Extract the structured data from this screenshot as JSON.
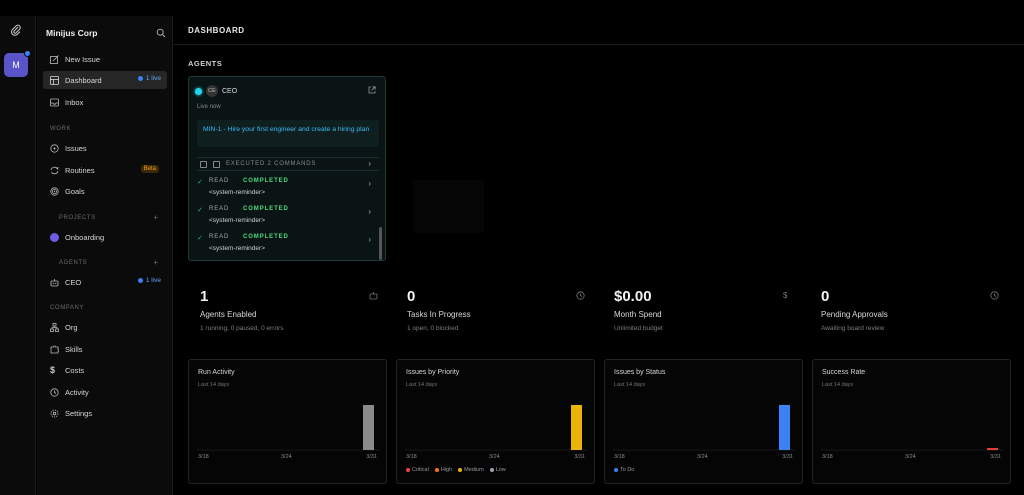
{
  "workspace": {
    "initial": "M"
  },
  "sidebar": {
    "company_name": "Minijus Corp",
    "top_items": [
      {
        "label": "New Issue"
      },
      {
        "label": "Dashboard",
        "badge": "1 live"
      },
      {
        "label": "Inbox"
      }
    ],
    "work_label": "WORK",
    "work_items": [
      {
        "label": "Issues"
      },
      {
        "label": "Routines",
        "badge": "Beta"
      },
      {
        "label": "Goals"
      }
    ],
    "projects_label": "PROJECTS",
    "projects": [
      {
        "label": "Onboarding",
        "color": "#6d5ce8"
      }
    ],
    "agents_label": "AGENTS",
    "agents": [
      {
        "label": "CEO",
        "badge": "1 live"
      }
    ],
    "company_label": "COMPANY",
    "company_items": [
      {
        "label": "Org"
      },
      {
        "label": "Skills"
      },
      {
        "label": "Costs"
      },
      {
        "label": "Activity"
      },
      {
        "label": "Settings"
      }
    ]
  },
  "header": {
    "title": "DASHBOARD"
  },
  "agents_section": {
    "label": "AGENTS",
    "card": {
      "avatar": "CE",
      "name": "CEO",
      "status": "Live now",
      "task": "MIN-1 - Hire your first engineer and create a hiring plan",
      "commands": "EXECUTED 2 COMMANDS",
      "steps": [
        {
          "type": "READ",
          "status": "COMPLETED",
          "detail": "<system-reminder>"
        },
        {
          "type": "READ",
          "status": "COMPLETED",
          "detail": "<system-reminder>"
        },
        {
          "type": "READ",
          "status": "COMPLETED",
          "detail": "<system-reminder>"
        }
      ]
    }
  },
  "stats": [
    {
      "value": "1",
      "label": "Agents Enabled",
      "sub": "1 running, 0 paused, 0 errors",
      "icon": "bot-icon"
    },
    {
      "value": "0",
      "label": "Tasks In Progress",
      "sub": "1 open, 0 blocked",
      "icon": "clock-icon"
    },
    {
      "value": "$0.00",
      "label": "Month Spend",
      "sub": "Unlimited budget",
      "icon": "dollar-icon"
    },
    {
      "value": "0",
      "label": "Pending Approvals",
      "sub": "Awaiting board review",
      "icon": "clock-icon"
    }
  ],
  "charts": [
    {
      "title": "Run Activity",
      "subtitle": "Last 14 days",
      "x_labels": [
        "3/18",
        "3/24",
        "3/31"
      ],
      "color": "#8a8a8a",
      "bar_fraction": 0.72,
      "legend": []
    },
    {
      "title": "Issues by Priority",
      "subtitle": "Last 14 days",
      "x_labels": [
        "3/18",
        "3/24",
        "3/31"
      ],
      "color": "#eab308",
      "bar_fraction": 0.72,
      "legend": [
        {
          "label": "Critical",
          "color": "#ef4444"
        },
        {
          "label": "High",
          "color": "#f97316"
        },
        {
          "label": "Medium",
          "color": "#eab308"
        },
        {
          "label": "Low",
          "color": "#9ca3af"
        }
      ]
    },
    {
      "title": "Issues by Status",
      "subtitle": "Last 14 days",
      "x_labels": [
        "3/18",
        "3/24",
        "3/31"
      ],
      "color": "#3b82f6",
      "bar_fraction": 0.72,
      "legend": [
        {
          "label": "To Do",
          "color": "#3b82f6"
        }
      ]
    },
    {
      "title": "Success Rate",
      "subtitle": "Last 14 days",
      "x_labels": [
        "3/18",
        "3/24",
        "3/31"
      ],
      "color": "#ef4444",
      "bar_fraction": 0.03,
      "legend": []
    }
  ]
}
